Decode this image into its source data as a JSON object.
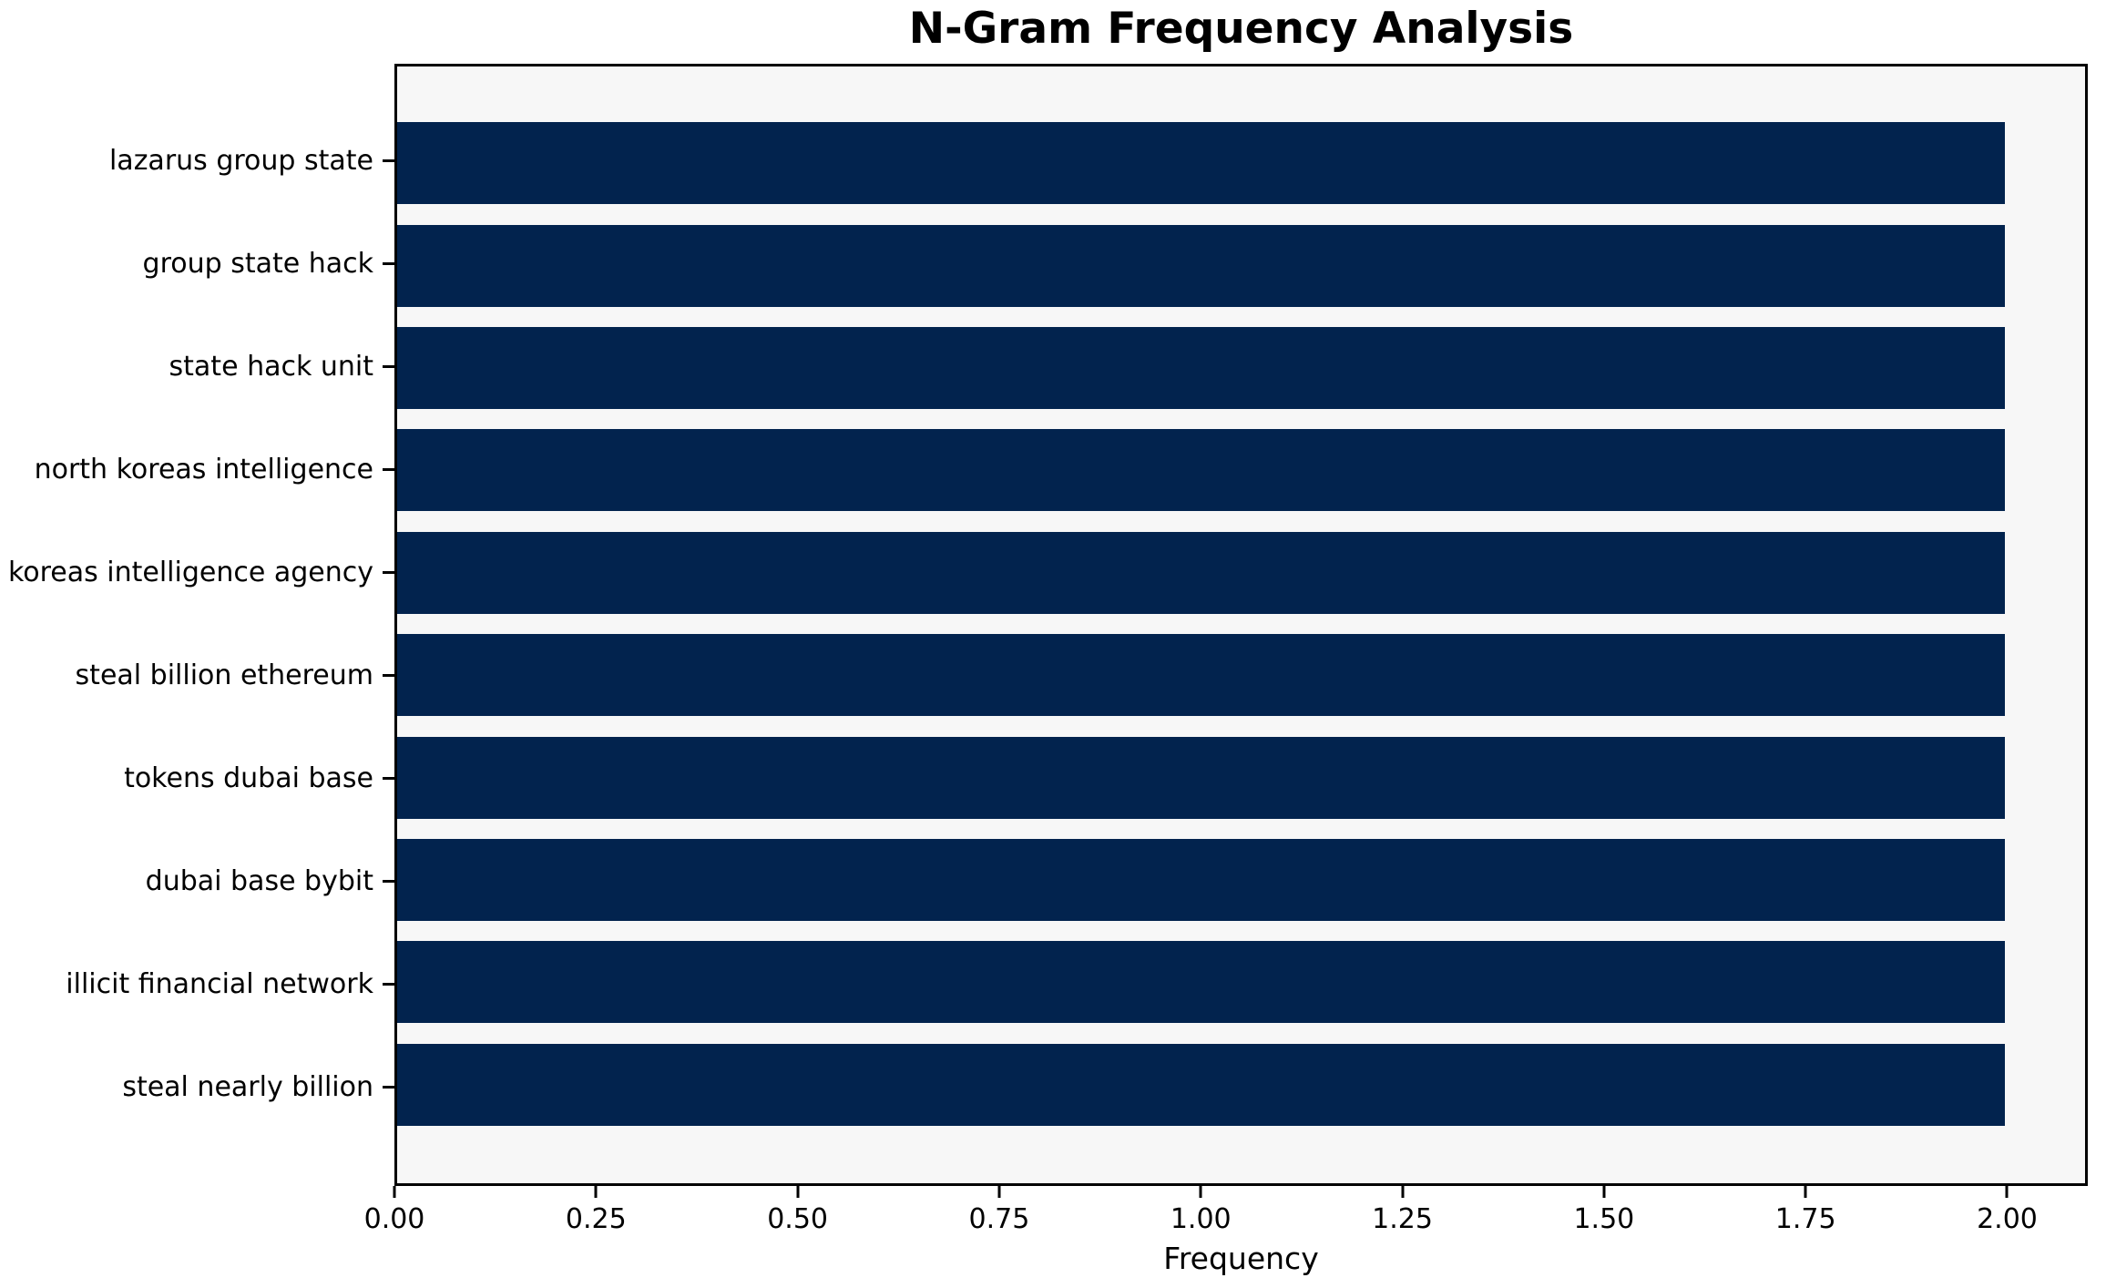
{
  "chart_data": {
    "type": "bar",
    "orientation": "horizontal",
    "title": "N-Gram Frequency Analysis",
    "xlabel": "Frequency",
    "ylabel": "",
    "categories": [
      "lazarus group state",
      "group state hack",
      "state hack unit",
      "north koreas intelligence",
      "koreas intelligence agency",
      "steal billion ethereum",
      "tokens dubai base",
      "dubai base bybit",
      "illicit financial network",
      "steal nearly billion"
    ],
    "values": [
      2,
      2,
      2,
      2,
      2,
      2,
      2,
      2,
      2,
      2
    ],
    "xlim": [
      0,
      2.1
    ],
    "xtick_values": [
      0,
      0.25,
      0.5,
      0.75,
      1.0,
      1.25,
      1.5,
      1.75,
      2.0
    ],
    "xtick_labels": [
      "0.00",
      "0.25",
      "0.50",
      "0.75",
      "1.00",
      "1.25",
      "1.50",
      "1.75",
      "2.00"
    ],
    "grid": false,
    "legend": null,
    "colors": {
      "bar": "#02234e",
      "plot_background": "#f7f7f7",
      "figure_background": "#ffffff",
      "spine": "#000000",
      "text": "#000000"
    }
  }
}
